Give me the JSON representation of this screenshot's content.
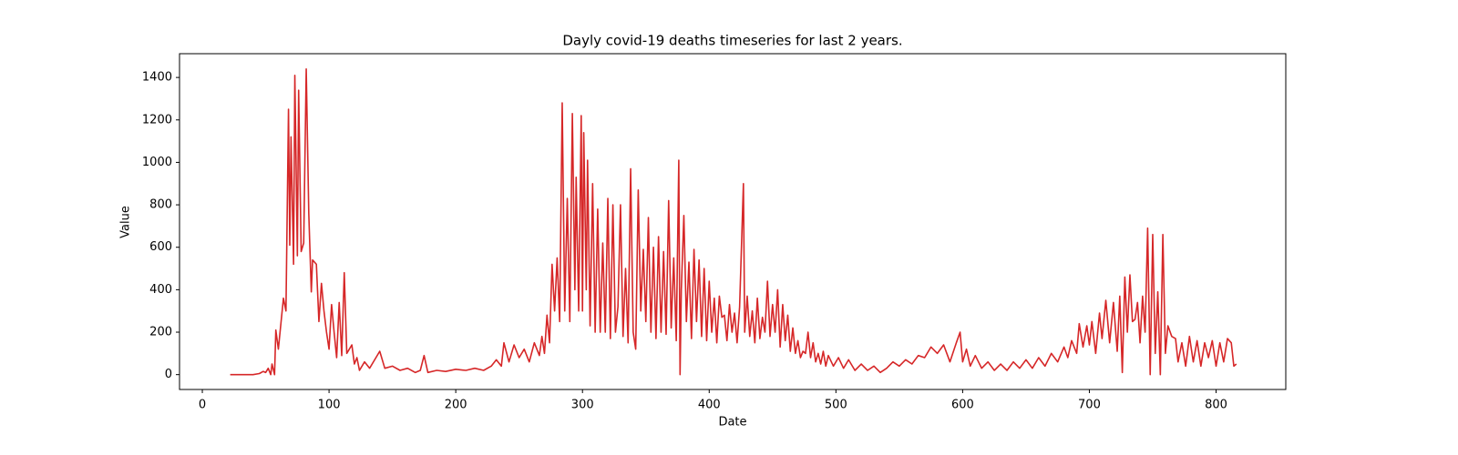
{
  "chart_data": {
    "type": "line",
    "title": "Dayly covid-19 deaths timeseries for last 2 years.",
    "x_label": "Date",
    "y_label": "Value",
    "xlim": [
      -18,
      855
    ],
    "ylim": [
      -70,
      1512
    ],
    "xticks": [
      0,
      100,
      200,
      300,
      400,
      500,
      600,
      700,
      800
    ],
    "yticks": [
      0,
      200,
      400,
      600,
      800,
      1000,
      1200,
      1400
    ],
    "series": [
      {
        "color": "#d62728",
        "x": [
          22,
          30,
          40,
          45,
          48,
          50,
          52,
          54,
          55,
          57,
          58,
          60,
          62,
          64,
          66,
          68,
          69,
          70,
          72,
          73,
          75,
          76,
          78,
          80,
          82,
          84,
          86,
          87,
          90,
          92,
          94,
          96,
          98,
          100,
          102,
          104,
          106,
          108,
          110,
          112,
          114,
          116,
          118,
          120,
          122,
          124,
          128,
          132,
          136,
          140,
          144,
          150,
          156,
          162,
          168,
          172,
          175,
          178,
          185,
          192,
          200,
          208,
          215,
          222,
          228,
          232,
          236,
          238,
          242,
          246,
          250,
          254,
          258,
          262,
          266,
          268,
          270,
          272,
          274,
          276,
          278,
          280,
          282,
          284,
          286,
          288,
          290,
          292,
          294,
          295,
          297,
          299,
          300,
          301,
          303,
          304,
          306,
          308,
          310,
          312,
          314,
          316,
          318,
          320,
          322,
          324,
          326,
          328,
          330,
          332,
          334,
          336,
          338,
          340,
          342,
          344,
          346,
          348,
          350,
          352,
          354,
          356,
          358,
          360,
          362,
          364,
          366,
          368,
          370,
          372,
          374,
          376,
          377,
          378,
          380,
          382,
          384,
          386,
          388,
          390,
          392,
          394,
          396,
          398,
          400,
          402,
          404,
          406,
          408,
          410,
          412,
          414,
          416,
          418,
          420,
          422,
          424,
          427,
          428,
          430,
          432,
          434,
          436,
          438,
          440,
          442,
          444,
          446,
          448,
          450,
          452,
          454,
          456,
          458,
          460,
          462,
          464,
          466,
          468,
          470,
          472,
          474,
          476,
          478,
          480,
          482,
          484,
          486,
          488,
          490,
          492,
          494,
          498,
          502,
          506,
          510,
          515,
          520,
          525,
          530,
          535,
          540,
          545,
          550,
          555,
          560,
          565,
          570,
          575,
          580,
          585,
          590,
          595,
          598,
          600,
          603,
          606,
          610,
          615,
          620,
          625,
          630,
          635,
          640,
          645,
          650,
          655,
          660,
          665,
          670,
          675,
          680,
          683,
          686,
          690,
          692,
          695,
          698,
          700,
          702,
          705,
          708,
          710,
          713,
          716,
          719,
          722,
          724,
          726,
          728,
          730,
          732,
          734,
          736,
          738,
          740,
          742,
          744,
          746,
          748,
          750,
          752,
          754,
          756,
          758,
          760,
          762,
          765,
          768,
          770,
          773,
          776,
          779,
          782,
          785,
          788,
          791,
          794,
          797,
          800,
          803,
          806,
          809,
          812,
          814,
          816
        ],
        "values": [
          0,
          0,
          0,
          5,
          15,
          10,
          30,
          0,
          50,
          0,
          210,
          120,
          240,
          360,
          300,
          1250,
          610,
          1120,
          520,
          1410,
          560,
          1340,
          580,
          620,
          1440,
          760,
          390,
          540,
          520,
          250,
          430,
          300,
          200,
          120,
          330,
          200,
          80,
          340,
          90,
          480,
          100,
          120,
          140,
          50,
          80,
          20,
          60,
          30,
          70,
          110,
          30,
          40,
          20,
          30,
          10,
          20,
          90,
          10,
          20,
          15,
          25,
          20,
          30,
          20,
          40,
          70,
          40,
          150,
          60,
          140,
          80,
          120,
          60,
          150,
          90,
          180,
          100,
          280,
          150,
          520,
          300,
          550,
          250,
          1280,
          300,
          830,
          250,
          1230,
          400,
          930,
          300,
          1220,
          300,
          1140,
          400,
          1010,
          230,
          900,
          200,
          780,
          200,
          620,
          200,
          830,
          170,
          800,
          200,
          320,
          800,
          180,
          500,
          150,
          970,
          200,
          120,
          870,
          300,
          590,
          250,
          740,
          200,
          600,
          170,
          650,
          200,
          580,
          190,
          820,
          220,
          550,
          160,
          1010,
          0,
          400,
          750,
          250,
          530,
          170,
          590,
          250,
          540,
          180,
          500,
          160,
          440,
          200,
          360,
          150,
          370,
          270,
          280,
          160,
          330,
          200,
          290,
          150,
          320,
          900,
          200,
          370,
          180,
          300,
          150,
          360,
          170,
          270,
          200,
          440,
          180,
          330,
          200,
          400,
          130,
          330,
          160,
          280,
          110,
          220,
          100,
          160,
          80,
          110,
          100,
          200,
          80,
          150,
          60,
          100,
          50,
          110,
          40,
          90,
          40,
          80,
          30,
          70,
          20,
          50,
          20,
          40,
          10,
          30,
          60,
          40,
          70,
          50,
          90,
          80,
          130,
          100,
          140,
          60,
          150,
          200,
          60,
          120,
          40,
          90,
          30,
          60,
          20,
          50,
          20,
          60,
          30,
          70,
          30,
          80,
          40,
          100,
          60,
          130,
          80,
          160,
          100,
          240,
          130,
          230,
          140,
          250,
          100,
          290,
          170,
          350,
          150,
          340,
          110,
          370,
          10,
          460,
          200,
          470,
          250,
          260,
          340,
          150,
          370,
          200,
          690,
          0,
          660,
          100,
          390,
          0,
          660,
          100,
          230,
          180,
          170,
          60,
          150,
          40,
          180,
          60,
          160,
          40,
          150,
          80,
          160,
          40,
          150,
          60,
          170,
          150,
          40,
          50
        ]
      }
    ]
  }
}
